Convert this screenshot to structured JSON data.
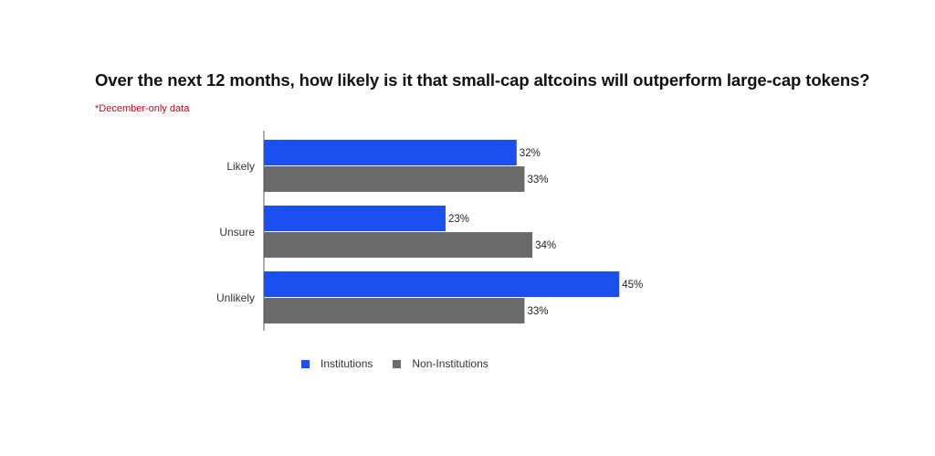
{
  "title": "Over the next 12 months, how likely is it that small-cap altcoins will outperform large-cap tokens?",
  "note": "*December-only data",
  "chart_data": {
    "type": "bar",
    "orientation": "horizontal",
    "categories": [
      "Likely",
      "Unsure",
      "Unlikely"
    ],
    "series": [
      {
        "name": "Institutions",
        "values": [
          32,
          23,
          45
        ],
        "labels": [
          "32%",
          "23%",
          "45%"
        ],
        "color": "#1a4ff0"
      },
      {
        "name": "Non-Institutions",
        "values": [
          33,
          34,
          33
        ],
        "labels": [
          "33%",
          "34%",
          "33%"
        ],
        "color": "#6b6b6b"
      }
    ],
    "value_unit": "%",
    "xlim": [
      0,
      100
    ],
    "grid": false,
    "legend_position": "bottom"
  }
}
